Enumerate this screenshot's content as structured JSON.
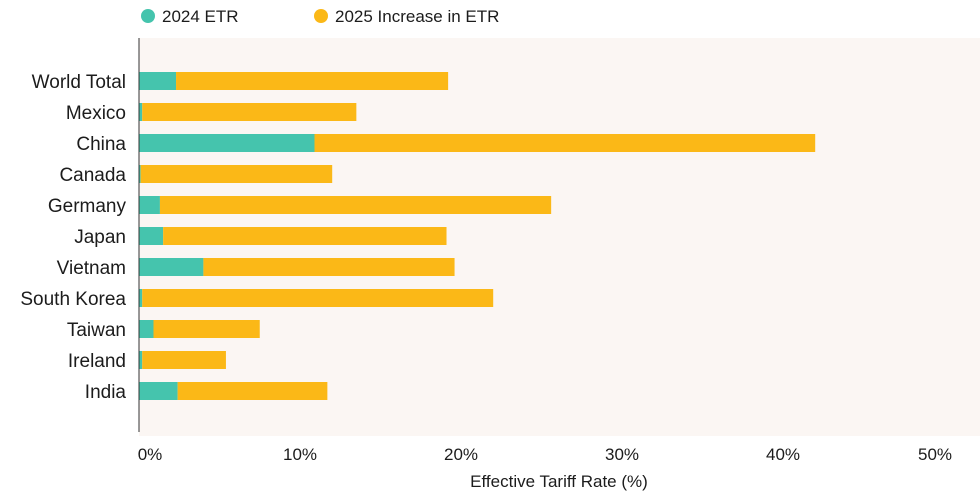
{
  "chart_data": {
    "type": "bar",
    "orientation": "horizontal",
    "stacked": true,
    "categories": [
      "World Total",
      "Mexico",
      "China",
      "Canada",
      "Germany",
      "Japan",
      "Vietnam",
      "South Korea",
      "Taiwan",
      "Ireland",
      "India"
    ],
    "series": [
      {
        "name": "2024 ETR",
        "color": "#45c4ad",
        "values": [
          2.3,
          0.2,
          10.9,
          0.1,
          1.3,
          1.5,
          4.0,
          0.2,
          0.9,
          0.2,
          2.4
        ]
      },
      {
        "name": "2025 Increase in ETR",
        "color": "#fbb817",
        "values": [
          16.9,
          13.3,
          31.1,
          11.9,
          24.3,
          17.6,
          15.6,
          21.8,
          6.6,
          5.2,
          9.3
        ]
      }
    ],
    "xlabel": "Effective Tariff Rate (%)",
    "ylabel": "",
    "xlim": [
      0,
      50
    ],
    "xticks": [
      "0%",
      "10%",
      "20%",
      "30%",
      "40%",
      "50%"
    ],
    "legend": "top-left",
    "grid": false,
    "plot_background": "#fbf6f3"
  }
}
